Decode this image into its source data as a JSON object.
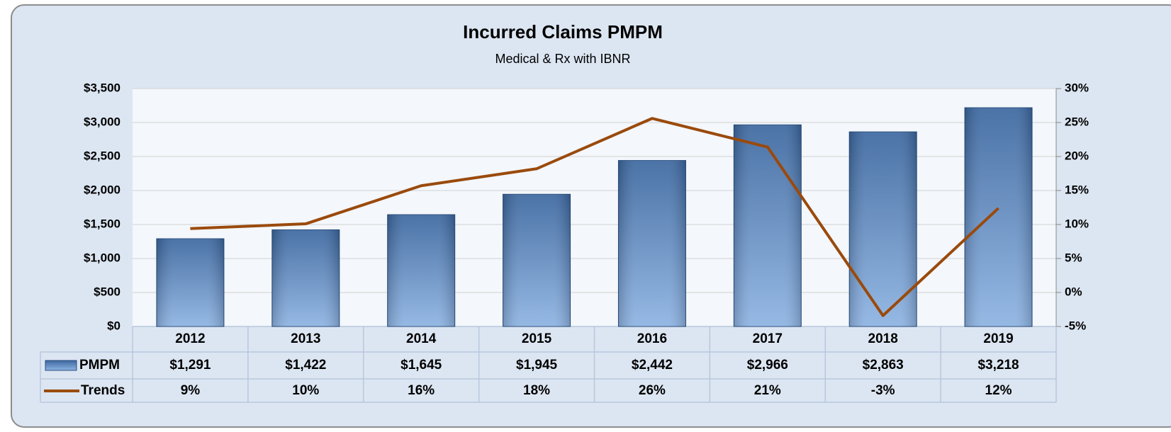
{
  "chart_data": {
    "type": "bar",
    "title": "Incurred Claims PMPM",
    "subtitle": "Medical & Rx with IBNR",
    "categories": [
      "2012",
      "2013",
      "2014",
      "2015",
      "2016",
      "2017",
      "2018",
      "2019"
    ],
    "series": [
      {
        "name": "PMPM",
        "type": "bar",
        "color": "#3c679f",
        "values": [
          1291,
          1422,
          1645,
          1945,
          2442,
          2966,
          2863,
          3218
        ],
        "value_labels": [
          "$1,291",
          "$1,422",
          "$1,645",
          "$1,945",
          "$2,442",
          "$2,966",
          "$2,863",
          "$3,218"
        ]
      },
      {
        "name": "Trends",
        "type": "line",
        "color": "#9a4a0c",
        "axis": "y2",
        "values": [
          9.4,
          10.1,
          15.7,
          18.2,
          25.6,
          21.4,
          -3.4,
          12.4
        ],
        "value_labels": [
          "9%",
          "10%",
          "16%",
          "18%",
          "26%",
          "21%",
          "-3%",
          "12%"
        ]
      }
    ],
    "ylim": [
      0,
      3500
    ],
    "yticks": [
      {
        "value": 0,
        "label": "$0"
      },
      {
        "value": 500,
        "label": "$500"
      },
      {
        "value": 1000,
        "label": "$1,000"
      },
      {
        "value": 1500,
        "label": "$1,500"
      },
      {
        "value": 2000,
        "label": "$2,000"
      },
      {
        "value": 2500,
        "label": "$2,500"
      },
      {
        "value": 3000,
        "label": "$3,000"
      },
      {
        "value": 3500,
        "label": "$3,500"
      }
    ],
    "y2lim": [
      -5,
      30
    ],
    "y2ticks": [
      {
        "value": -5,
        "label": "-5%"
      },
      {
        "value": 0,
        "label": "0%"
      },
      {
        "value": 5,
        "label": "5%"
      },
      {
        "value": 10,
        "label": "10%"
      },
      {
        "value": 15,
        "label": "15%"
      },
      {
        "value": 20,
        "label": "20%"
      },
      {
        "value": 25,
        "label": "25%"
      },
      {
        "value": 30,
        "label": "30%"
      }
    ],
    "grid": true
  }
}
